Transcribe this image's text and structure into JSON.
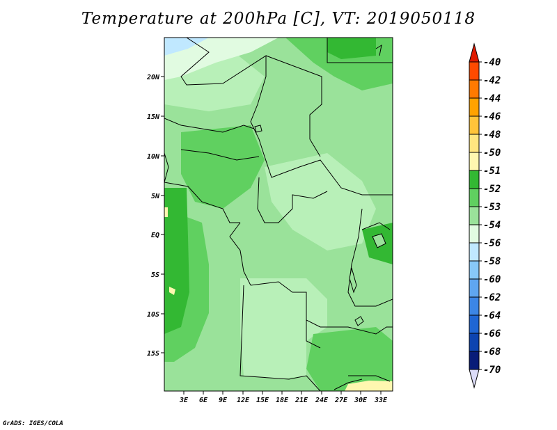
{
  "title": "Temperature at 200hPa [C], VT: 2019050118",
  "credit": "GrADS: IGES/COLA",
  "map": {
    "lat_labels": [
      "20N",
      "15N",
      "10N",
      "5N",
      "EQ",
      "5S",
      "10S",
      "15S"
    ],
    "lon_labels": [
      "3E",
      "6E",
      "9E",
      "12E",
      "15E",
      "18E",
      "21E",
      "24E",
      "27E",
      "30E",
      "33E"
    ]
  },
  "legend": {
    "labels": [
      "-40",
      "-42",
      "-44",
      "-46",
      "-48",
      "-50",
      "-51",
      "-52",
      "-53",
      "-54",
      "-56",
      "-58",
      "-60",
      "-62",
      "-64",
      "-66",
      "-68",
      "-70"
    ],
    "colors": [
      "#e01a00",
      "#ff4a00",
      "#ff7a00",
      "#ffa200",
      "#ffc43a",
      "#ffe680",
      "#fff7b0",
      "#33b833",
      "#60d060",
      "#9ae29a",
      "#e1fbe1",
      "#c0e8ff",
      "#88c8f8",
      "#5fa6f0",
      "#3c86e6",
      "#1f66d4",
      "#0d44b0",
      "#081c78",
      "#dcdcf8"
    ]
  }
}
